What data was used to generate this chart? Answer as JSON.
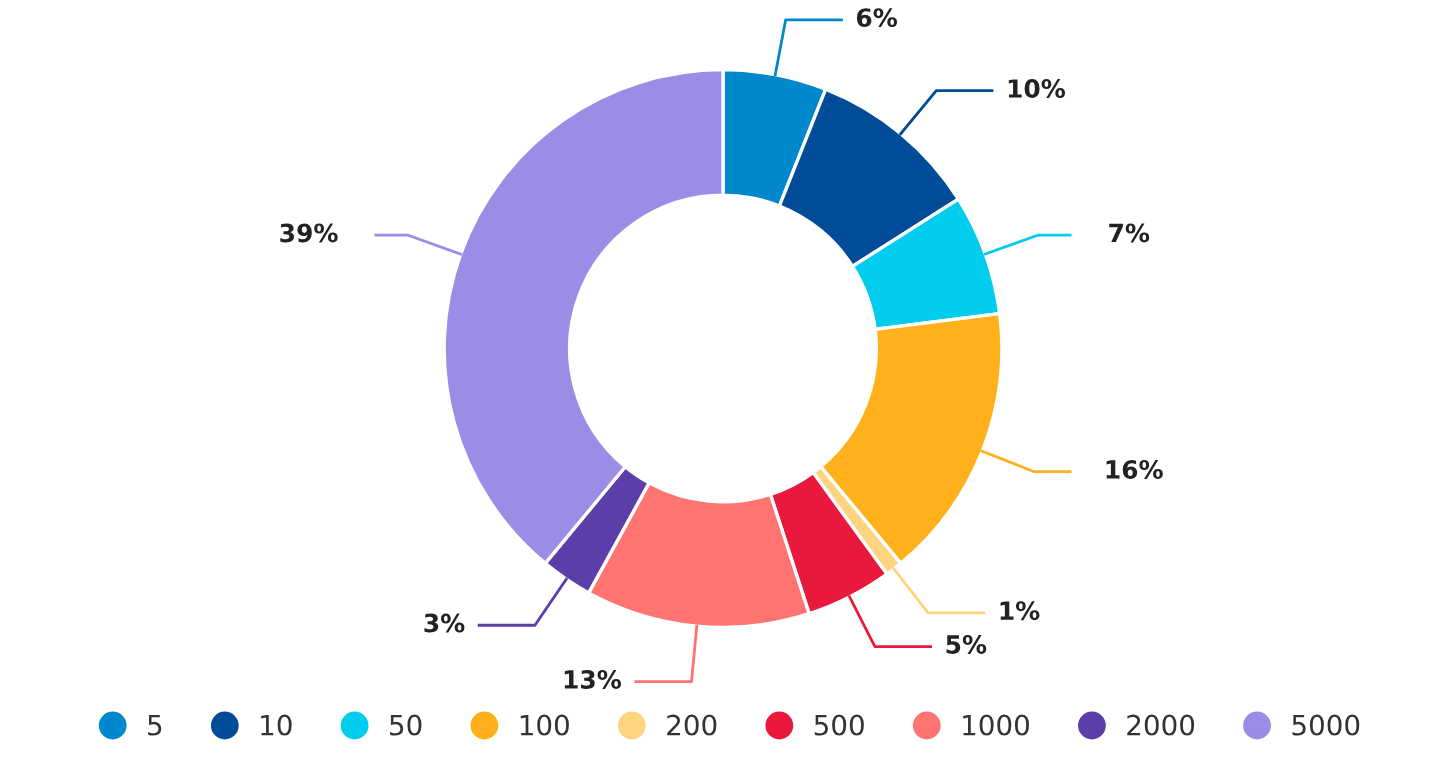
{
  "chart_data": {
    "type": "donut",
    "categories": [
      "5",
      "10",
      "50",
      "100",
      "200",
      "500",
      "1000",
      "2000",
      "5000"
    ],
    "values": [
      6,
      10,
      7,
      16,
      1,
      5,
      13,
      3,
      39
    ],
    "value_labels": [
      "6%",
      "10%",
      "7%",
      "16%",
      "1%",
      "5%",
      "13%",
      "3%",
      "39%"
    ],
    "colors": [
      "#0088cc",
      "#004c99",
      "#00ccee",
      "#ffb01a",
      "#ffd480",
      "#e8193c",
      "#ff7370",
      "#5c3ea8",
      "#9b8ce6"
    ],
    "legend": "bottom"
  }
}
